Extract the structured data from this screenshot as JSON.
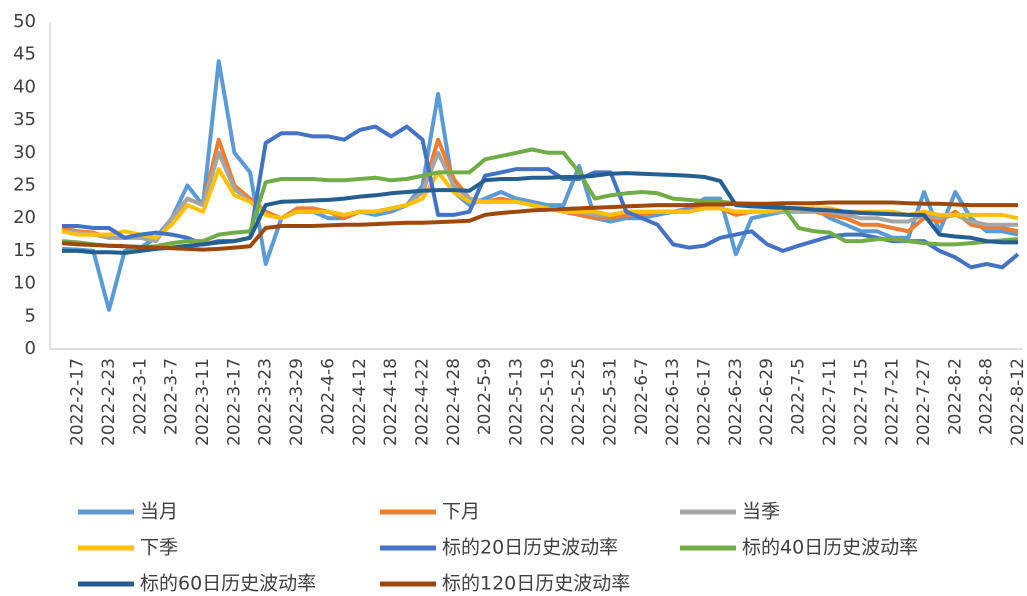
{
  "chart_data": {
    "type": "line",
    "categories": [
      null,
      "2022-2-17",
      null,
      "2022-2-23",
      null,
      "2022-3-1",
      null,
      "2022-3-7",
      null,
      "2022-3-11",
      null,
      "2022-3-17",
      null,
      "2022-3-23",
      null,
      "2022-3-29",
      null,
      "2022-4-6",
      null,
      "2022-4-12",
      null,
      "2022-4-18",
      null,
      "2022-4-22",
      null,
      "2022-4-28",
      null,
      "2022-5-9",
      null,
      "2022-5-13",
      null,
      "2022-5-19",
      null,
      "2022-5-25",
      null,
      "2022-5-31",
      null,
      "2022-6-7",
      null,
      "2022-6-13",
      null,
      "2022-6-17",
      null,
      "2022-6-23",
      null,
      "2022-6-29",
      null,
      "2022-7-5",
      null,
      "2022-7-11",
      null,
      "2022-7-15",
      null,
      "2022-7-21",
      null,
      "2022-7-27",
      null,
      "2022-8-2",
      null,
      "2022-8-8",
      null,
      "2022-8-12"
    ],
    "ylim": [
      0,
      50
    ],
    "yticks": [
      0,
      5,
      10,
      15,
      20,
      25,
      30,
      35,
      40,
      45,
      50
    ],
    "grid": false,
    "series": [
      {
        "name": "当月",
        "color": "#5b9bd5",
        "values": [
          15.3,
          15.2,
          15,
          6,
          15,
          15.5,
          17,
          20,
          25,
          22,
          44,
          30,
          27,
          13,
          20,
          21,
          21,
          20,
          20,
          21,
          20.5,
          21,
          22,
          25,
          39,
          24,
          22,
          23,
          24,
          23,
          22.5,
          22,
          22,
          28,
          20,
          19.5,
          20,
          20,
          20.5,
          21,
          21.5,
          23,
          23,
          14.5,
          20,
          20.5,
          21,
          21.5,
          21.5,
          20,
          19,
          18,
          18,
          17,
          17,
          24,
          18,
          24,
          20,
          18,
          18,
          17.5
        ]
      },
      {
        "name": "下月",
        "color": "#ed7d31",
        "values": [
          18.5,
          18,
          17.8,
          17,
          17,
          17,
          16.5,
          20,
          23,
          22,
          32,
          25,
          23,
          21,
          20,
          21.5,
          21.5,
          21,
          20,
          21,
          21,
          21.5,
          22,
          24,
          32,
          26,
          23,
          22.5,
          23,
          22.5,
          22,
          21.5,
          21,
          20.5,
          20,
          20,
          20.5,
          20.5,
          21,
          21,
          21,
          22,
          21.5,
          20.5,
          21,
          21,
          21,
          21,
          21,
          20.5,
          20,
          19,
          19,
          18.5,
          18,
          20,
          19.5,
          21,
          19,
          18.5,
          18.5,
          18
        ]
      },
      {
        "name": "当季",
        "color": "#a5a5a5",
        "values": [
          18,
          17.8,
          17.5,
          17,
          17,
          17,
          16.5,
          20,
          23,
          22,
          30,
          24.5,
          22.5,
          20.5,
          20,
          21,
          21,
          21,
          20.5,
          21,
          21,
          21.5,
          22,
          24,
          30,
          25,
          23,
          22.5,
          22.5,
          22.5,
          22,
          21.5,
          21,
          21,
          20.5,
          20.5,
          21,
          21,
          21,
          21,
          21,
          21.5,
          21.5,
          21,
          21,
          21,
          21,
          21,
          21,
          21,
          20.5,
          20,
          20,
          19.5,
          19.5,
          20.5,
          20,
          20.5,
          19.5,
          19,
          19,
          19
        ]
      },
      {
        "name": "下季",
        "color": "#ffc000",
        "values": [
          18,
          17.5,
          17.5,
          17.5,
          18,
          17.5,
          17,
          19,
          22,
          21,
          27.5,
          23.5,
          22.5,
          20.5,
          20,
          21,
          21,
          21,
          20.5,
          21,
          21,
          21.5,
          22,
          23,
          27,
          24,
          22.5,
          22.5,
          22.5,
          22.5,
          22,
          21.5,
          21,
          21,
          21,
          20.5,
          21,
          21,
          21,
          21,
          21,
          21.5,
          21.5,
          21,
          21,
          21,
          21.5,
          21.5,
          21.5,
          21.5,
          21,
          21,
          21,
          21,
          20.5,
          21,
          20.5,
          20.5,
          20.5,
          20.5,
          20.5,
          20
        ]
      },
      {
        "name": "标的20日历史波动率",
        "color": "#4472c4",
        "values": [
          18.8,
          18.8,
          18.5,
          18.5,
          17,
          17.5,
          17.8,
          17.5,
          17,
          16,
          16.5,
          16.5,
          17,
          31.5,
          33,
          33,
          32.5,
          32.5,
          32,
          33.5,
          34,
          32.5,
          34,
          32,
          20.5,
          20.5,
          21,
          26.5,
          27,
          27.5,
          27.5,
          27.5,
          26,
          26,
          27,
          27,
          21,
          20,
          19,
          16,
          15.5,
          15.8,
          17,
          17.5,
          18,
          16,
          15,
          15.8,
          16.5,
          17.2,
          17.5,
          17.5,
          17,
          16.5,
          16.5,
          16.5,
          15,
          14,
          12.5,
          13,
          12.5,
          14.5
        ]
      },
      {
        "name": "标的40日历史波动率",
        "color": "#70ad47",
        "values": [
          16.5,
          16.3,
          16,
          15.8,
          15.7,
          15.6,
          15.7,
          16.2,
          16.5,
          16.5,
          17.5,
          17.8,
          18,
          25.5,
          26,
          26,
          26,
          25.8,
          25.8,
          26,
          26.2,
          25.8,
          26,
          26.5,
          27,
          27,
          27,
          29,
          29.5,
          30,
          30.5,
          30,
          30,
          27,
          23,
          23.5,
          23.8,
          24,
          23.8,
          23,
          22.8,
          22.6,
          22.5,
          22.3,
          22.2,
          22,
          21.8,
          18.5,
          18,
          17.8,
          16.5,
          16.5,
          16.8,
          16.8,
          16.5,
          16.2,
          16,
          16,
          16.2,
          16.4,
          16.6,
          16.8
        ]
      },
      {
        "name": "标的60日历史波动率",
        "color": "#255e91",
        "values": [
          15,
          15,
          14.8,
          14.8,
          14.7,
          15,
          15.3,
          15.5,
          15.8,
          16,
          16.3,
          16.5,
          17,
          22,
          22.5,
          22.6,
          22.7,
          22.8,
          23,
          23.3,
          23.5,
          23.8,
          24,
          24.2,
          24.3,
          24.3,
          24.2,
          25.8,
          26,
          26,
          26.2,
          26.2,
          26.3,
          26.3,
          26.5,
          26.8,
          26.9,
          26.8,
          26.7,
          26.6,
          26.5,
          26.3,
          25.7,
          22,
          21.8,
          21.7,
          21.6,
          21.5,
          21.3,
          21.2,
          21,
          20.8,
          20.7,
          20.6,
          20.5,
          20.5,
          17.5,
          17.2,
          17,
          16.5,
          16.3,
          16.3
        ]
      },
      {
        "name": "标的120日历史波动率",
        "color": "#9e480e",
        "values": [
          16.2,
          16,
          15.9,
          15.8,
          15.7,
          15.6,
          15.5,
          15.4,
          15.3,
          15.2,
          15.3,
          15.5,
          15.7,
          18.5,
          18.8,
          18.8,
          18.8,
          18.9,
          19,
          19,
          19.1,
          19.2,
          19.3,
          19.3,
          19.4,
          19.5,
          19.6,
          20.5,
          20.8,
          21,
          21.2,
          21.3,
          21.4,
          21.5,
          21.6,
          21.7,
          21.8,
          21.9,
          22,
          22,
          22,
          22.1,
          22.1,
          22.2,
          22.2,
          22.2,
          22.3,
          22.3,
          22.3,
          22.4,
          22.4,
          22.4,
          22.4,
          22.4,
          22.3,
          22.2,
          22.2,
          22.1,
          22,
          22,
          22,
          22
        ]
      }
    ]
  }
}
